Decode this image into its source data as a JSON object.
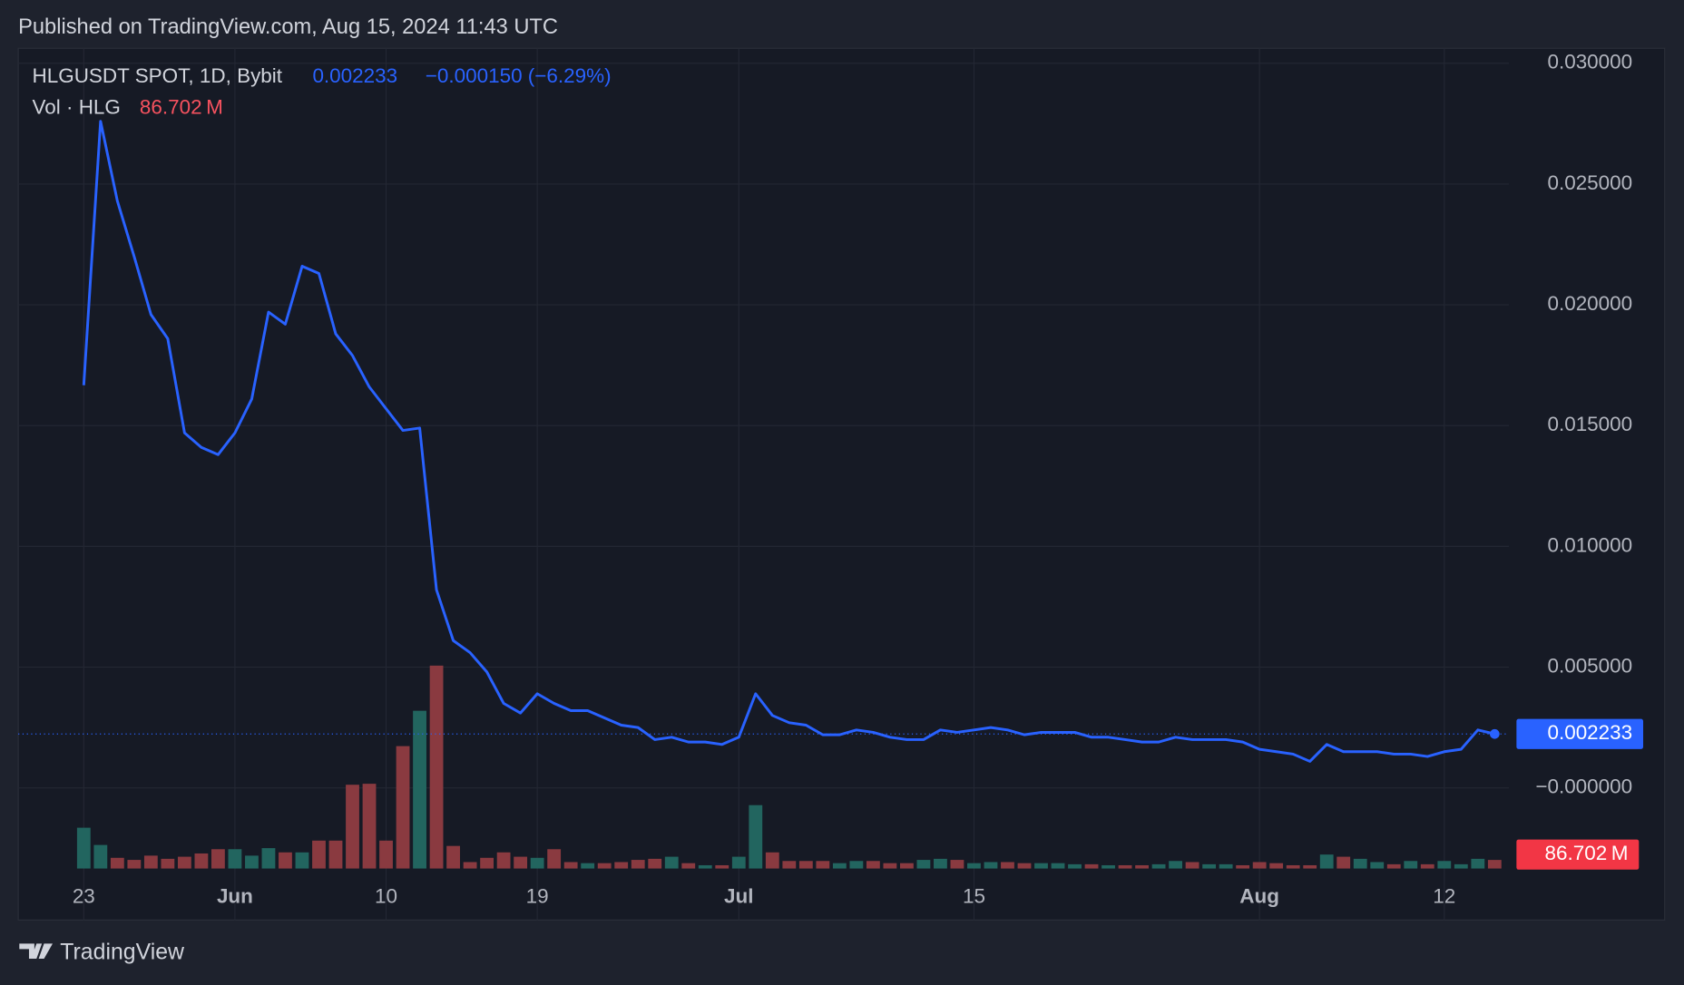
{
  "published": "Published on TradingView.com, Aug 15, 2024 11:43 UTC",
  "brand": "TradingView",
  "chart_data": {
    "type": "line",
    "symbol": "HLGUSDT SPOT, 1D, Bybit",
    "change": "−0.000150 (−6.29%)",
    "volume_title": "Vol · HLG",
    "volume_label": "86.702 M",
    "xlim": [
      -3.9,
      84.85
    ],
    "xticks": [
      {
        "value": 0,
        "label": "23"
      },
      {
        "value": 9,
        "label": "Jun"
      },
      {
        "value": 18,
        "label": "10"
      },
      {
        "value": 27,
        "label": "19"
      },
      {
        "value": 39,
        "label": "Jul"
      },
      {
        "value": 53,
        "label": "15"
      },
      {
        "value": 70,
        "label": "Aug"
      },
      {
        "value": 81,
        "label": "12"
      }
    ],
    "ylim": [
      -0.00547,
      0.03062
    ],
    "yticks": [
      {
        "value": 0.03,
        "label": "0.030000"
      },
      {
        "value": 0.025,
        "label": "0.025000"
      },
      {
        "value": 0.02,
        "label": "0.020000"
      },
      {
        "value": 0.015,
        "label": "0.015000"
      },
      {
        "value": 0.01,
        "label": "0.010000"
      },
      {
        "value": 0.005,
        "label": "0.005000"
      },
      {
        "value": 0,
        "label": "−0.000000"
      }
    ],
    "grid": true,
    "series": [
      {
        "name": "HLGUSDT",
        "color": "#2962ff",
        "values": [
          0.01667,
          0.0276,
          0.0243,
          0.022,
          0.0196,
          0.0186,
          0.0147,
          0.0141,
          0.0138,
          0.0147,
          0.0161,
          0.0197,
          0.0192,
          0.0216,
          0.0213,
          0.0188,
          0.0179,
          0.0166,
          0.0157,
          0.0148,
          0.0149,
          0.0082,
          0.0061,
          0.0056,
          0.0048,
          0.0035,
          0.0031,
          0.0039,
          0.0035,
          0.0032,
          0.0032,
          0.0029,
          0.0026,
          0.0025,
          0.002,
          0.0021,
          0.0019,
          0.0019,
          0.0018,
          0.0021,
          0.0039,
          0.003,
          0.0027,
          0.0026,
          0.0022,
          0.0022,
          0.0024,
          0.0023,
          0.0021,
          0.002,
          0.002,
          0.0024,
          0.0023,
          0.0024,
          0.0025,
          0.0024,
          0.0022,
          0.0023,
          0.0023,
          0.0023,
          0.0021,
          0.0021,
          0.002,
          0.0019,
          0.0019,
          0.0021,
          0.002,
          0.002,
          0.002,
          0.0019,
          0.0016,
          0.0015,
          0.0014,
          0.0011,
          0.0018,
          0.0015,
          0.0015,
          0.0015,
          0.0014,
          0.0014,
          0.0013,
          0.0015,
          0.0016,
          0.0024,
          0.002233
        ]
      },
      {
        "name": "Vol",
        "up_color": "#22655f",
        "down_color": "#8a3a40",
        "values": [
          412,
          238,
          108,
          87,
          130,
          98,
          119,
          152,
          195,
          195,
          130,
          206,
          163,
          163,
          282,
          282,
          846,
          856,
          282,
          1236,
          1593,
          2049,
          228,
          65,
          108,
          163,
          119,
          108,
          195,
          65,
          54,
          54,
          65,
          87,
          98,
          119,
          54,
          33,
          33,
          119,
          640,
          163,
          76,
          76,
          76,
          54,
          76,
          76,
          54,
          54,
          87,
          98,
          87,
          54,
          65,
          65,
          54,
          54,
          54,
          43,
          43,
          33,
          33,
          33,
          43,
          76,
          65,
          43,
          43,
          33,
          65,
          54,
          33,
          33,
          141,
          119,
          98,
          65,
          43,
          76,
          43,
          76,
          43,
          98,
          86.702
        ]
      }
    ]
  }
}
